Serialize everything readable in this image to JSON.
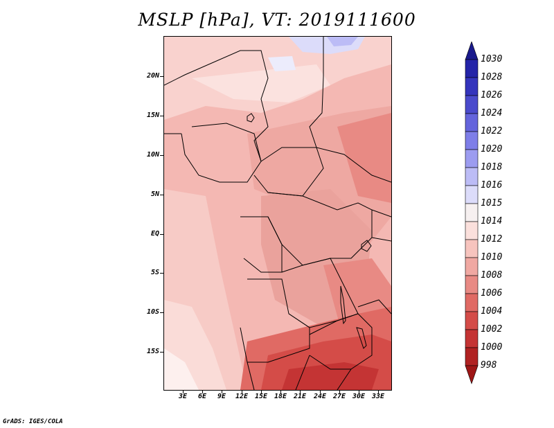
{
  "title": "MSLP [hPa], VT: 2019111600",
  "credit": "GrADS: IGES/COLA",
  "lat_labels": [
    "20N",
    "15N",
    "10N",
    "5N",
    "EQ",
    "5S",
    "10S",
    "15S"
  ],
  "lon_labels": [
    "3E",
    "6E",
    "9E",
    "12E",
    "15E",
    "18E",
    "21E",
    "24E",
    "27E",
    "30E",
    "33E"
  ],
  "colorbar": {
    "levels": [
      "1030",
      "1028",
      "1026",
      "1024",
      "1022",
      "1020",
      "1018",
      "1016",
      "1015",
      "1014",
      "1012",
      "1010",
      "1008",
      "1006",
      "1004",
      "1002",
      "1000",
      "998"
    ],
    "colors": [
      "#1a1a8c",
      "#2424a8",
      "#3434bc",
      "#4a4acc",
      "#6464dc",
      "#7e7ee8",
      "#9c9cf0",
      "#bcbcf6",
      "#dcdcfa",
      "#f6f0f0",
      "#fbe0dc",
      "#f7c4be",
      "#f0a8a2",
      "#e88a84",
      "#e06a64",
      "#d44c48",
      "#c43434",
      "#b02222",
      "#9e1616"
    ]
  }
}
